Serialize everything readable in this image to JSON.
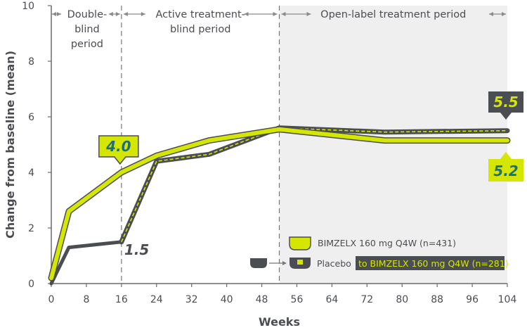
{
  "chart_data": {
    "type": "line",
    "title": "",
    "xlabel": "Weeks",
    "ylabel": "Change from baseline (mean)",
    "xlim": [
      0,
      104
    ],
    "ylim": [
      0,
      10
    ],
    "xticks": [
      0,
      8,
      16,
      24,
      32,
      40,
      48,
      56,
      64,
      72,
      80,
      88,
      96,
      104
    ],
    "yticks": [
      0,
      2,
      4,
      6,
      8,
      10
    ],
    "periods": [
      {
        "label": "Double-blind period",
        "lines": [
          "Double-",
          "blind",
          "period"
        ],
        "start": 0,
        "end": 16,
        "shaded": false
      },
      {
        "label": "Active treatment-blind period",
        "lines": [
          "Active treatment-",
          "blind period"
        ],
        "start": 16,
        "end": 52,
        "shaded": false
      },
      {
        "label": "Open-label treatment period",
        "lines": [
          "Open-label treatment period"
        ],
        "start": 52,
        "end": 104,
        "shaded": true
      }
    ],
    "series": [
      {
        "name": "BIMZELX 160 mg Q4W (n=431)",
        "color": "#d5e600",
        "outline": "#4a4d52",
        "x": [
          0,
          4,
          16,
          24,
          36,
          52,
          76,
          104
        ],
        "y": [
          0.2,
          2.6,
          4.0,
          4.6,
          5.15,
          5.55,
          5.15,
          5.15
        ]
      },
      {
        "name": "Placebo to BIMZELX 160 mg Q4W (n=281)",
        "color": "#4a4d52",
        "segments": [
          {
            "x": [
              0,
              4,
              16
            ],
            "y": [
              0.0,
              1.3,
              1.5
            ]
          },
          {
            "x": [
              16,
              24,
              36,
              52,
              76,
              104
            ],
            "y": [
              1.5,
              4.4,
              4.65,
              5.6,
              5.45,
              5.5
            ]
          }
        ]
      }
    ],
    "annotations": [
      {
        "text": "4.0",
        "x": 16,
        "y": 4.0,
        "style": "callout-green"
      },
      {
        "text": "1.5",
        "x": 16,
        "y": 1.5,
        "style": "plain"
      },
      {
        "text": "5.5",
        "x": 104,
        "y": 5.5,
        "style": "callout-dark"
      },
      {
        "text": "5.2",
        "x": 104,
        "y": 5.15,
        "style": "callout-green-below"
      }
    ],
    "legend": {
      "position": "bottom-right",
      "bimzelx_label": "BIMZELX 160 mg Q4W (n=431)",
      "placebo_label": "Placebo",
      "switch_label": "to BIMZELX 160 mg Q4W (n=281)"
    }
  }
}
